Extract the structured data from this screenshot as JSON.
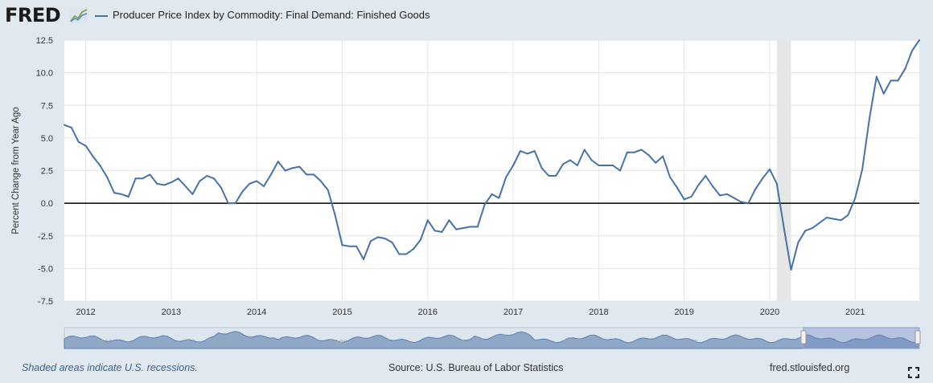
{
  "header": {
    "logo": "FRED",
    "legend_label": "Producer Price Index by Commodity: Final Demand: Finished Goods"
  },
  "colors": {
    "series": "#4572a7",
    "recession": "#e6e6e6",
    "background": "#e1e9f0",
    "plot": "#ffffff"
  },
  "chart_data": {
    "type": "line",
    "title": "",
    "xlabel": "",
    "ylabel": "Percent Change from Year Ago",
    "ylim": [
      -7.5,
      12.5
    ],
    "xlim": [
      2011.75,
      2021.75
    ],
    "grid": true,
    "legend": "top-left",
    "yticks": [
      "12.5",
      "10.0",
      "7.5",
      "5.0",
      "2.5",
      "0.0",
      "-2.5",
      "-5.0",
      "-7.5"
    ],
    "xticks": [
      "2012",
      "2013",
      "2014",
      "2015",
      "2016",
      "2017",
      "2018",
      "2019",
      "2020",
      "2021"
    ],
    "recessions": [
      {
        "start": "2020-02",
        "end": "2020-04"
      }
    ],
    "series": [
      {
        "name": "Producer Price Index by Commodity: Final Demand: Finished Goods",
        "start": "2011-10",
        "values": [
          6.0,
          5.8,
          4.7,
          4.4,
          3.6,
          2.9,
          2.0,
          0.8,
          0.7,
          0.5,
          1.9,
          1.9,
          2.2,
          1.5,
          1.4,
          1.6,
          1.9,
          1.3,
          0.7,
          1.7,
          2.1,
          1.9,
          1.2,
          0.0,
          0.0,
          0.9,
          1.5,
          1.7,
          1.3,
          2.2,
          3.2,
          2.5,
          2.7,
          2.8,
          2.2,
          2.2,
          1.7,
          1.0,
          -0.9,
          -3.2,
          -3.3,
          -3.3,
          -4.3,
          -2.9,
          -2.6,
          -2.7,
          -3.0,
          -3.9,
          -3.9,
          -3.5,
          -2.8,
          -1.3,
          -2.1,
          -2.2,
          -1.3,
          -2.0,
          -1.9,
          -1.8,
          -1.8,
          -0.1,
          0.7,
          0.4,
          2.0,
          2.9,
          4.0,
          3.8,
          4.0,
          2.7,
          2.1,
          2.1,
          3.0,
          3.3,
          2.9,
          4.1,
          3.3,
          2.9,
          2.9,
          2.9,
          2.5,
          3.9,
          3.9,
          4.1,
          3.7,
          3.1,
          3.6,
          2.0,
          1.2,
          0.3,
          0.5,
          1.4,
          2.1,
          1.3,
          0.6,
          0.7,
          0.4,
          0.1,
          0.0,
          1.1,
          1.9,
          2.6,
          1.5,
          -1.9,
          -5.1,
          -3.0,
          -2.1,
          -1.9,
          -1.5,
          -1.1,
          -1.2,
          -1.3,
          -0.9,
          0.4,
          2.6,
          6.5,
          9.7,
          8.4,
          9.4,
          9.4,
          10.3,
          11.7,
          12.5
        ]
      }
    ]
  },
  "navigator": {
    "labels": [
      "1960",
      "1970",
      "1980",
      "1990",
      "2000",
      "2010",
      "2020"
    ]
  },
  "footer": {
    "note": "Shaded areas indicate U.S. recessions.",
    "source": "Source: U.S. Bureau of Labor Statistics",
    "site": "fred.stlouisfed.org"
  }
}
